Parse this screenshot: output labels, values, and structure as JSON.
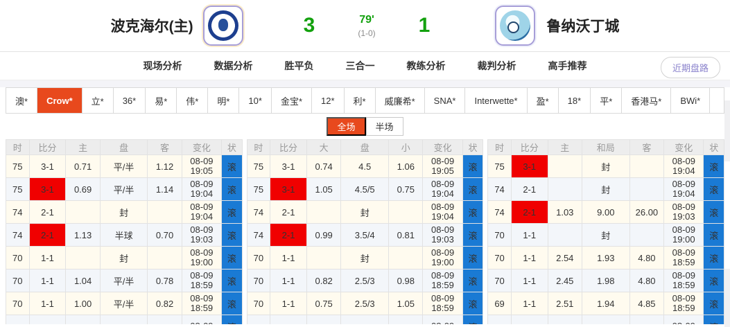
{
  "header": {
    "home_team": "波克海尔(主)",
    "home_score": "3",
    "minute": "79'",
    "half_score": "(1-0)",
    "away_score": "1",
    "away_team": "鲁纳沃丁城",
    "home_badge_icon": "box-hill-united-crest",
    "away_badge_icon": "nunawading-city-crest"
  },
  "nav": {
    "tabs": [
      "现场分析",
      "数据分析",
      "胜平负",
      "三合一",
      "教练分析",
      "裁判分析",
      "高手推荐"
    ],
    "recent_trend_button": "近期盘路"
  },
  "bookmakers": {
    "selected": "Crow*",
    "items": [
      "澳*",
      "Crow*",
      "立*",
      "36*",
      "易*",
      "伟*",
      "明*",
      "10*",
      "金宝*",
      "12*",
      "利*",
      "威廉希*",
      "SNA*",
      "Interwette*",
      "盈*",
      "18*",
      "平*",
      "香港马*",
      "BWi*"
    ]
  },
  "scope_toggle": {
    "options": [
      "全场",
      "半场"
    ],
    "selected": "全场"
  },
  "odds_tables": [
    {
      "name": "asian-handicap",
      "headers": [
        "时",
        "比分",
        "主",
        "盘",
        "客",
        "变化",
        "状"
      ],
      "rows": [
        [
          {
            "t": "75"
          },
          {
            "t": "3-1"
          },
          {
            "t": "0.71",
            "c": "red"
          },
          {
            "t": "平/半"
          },
          {
            "t": "1.12",
            "c": "green"
          },
          {
            "t": "08-09\n19:05"
          },
          {
            "t": "滚"
          }
        ],
        [
          {
            "t": "75"
          },
          {
            "t": "3-1",
            "c": "redbg"
          },
          {
            "t": "0.69"
          },
          {
            "t": "平/半",
            "c": "red"
          },
          {
            "t": "1.14"
          },
          {
            "t": "08-09\n19:04"
          },
          {
            "t": "滚"
          }
        ],
        [
          {
            "t": "74"
          },
          {
            "t": "2-1"
          },
          {
            "t": ""
          },
          {
            "t": "封",
            "c": "green"
          },
          {
            "t": ""
          },
          {
            "t": "08-09\n19:04"
          },
          {
            "t": "滚"
          }
        ],
        [
          {
            "t": "74"
          },
          {
            "t": "2-1",
            "c": "redbg"
          },
          {
            "t": "1.13"
          },
          {
            "t": "半球",
            "c": "red"
          },
          {
            "t": "0.70"
          },
          {
            "t": "08-09\n19:03"
          },
          {
            "t": "滚"
          }
        ],
        [
          {
            "t": "70"
          },
          {
            "t": "1-1"
          },
          {
            "t": ""
          },
          {
            "t": "封",
            "c": "green"
          },
          {
            "t": ""
          },
          {
            "t": "08-09\n19:00"
          },
          {
            "t": "滚"
          }
        ],
        [
          {
            "t": "70"
          },
          {
            "t": "1-1"
          },
          {
            "t": "1.04",
            "c": "red"
          },
          {
            "t": "平/半"
          },
          {
            "t": "0.78",
            "c": "green"
          },
          {
            "t": "08-09\n18:59"
          },
          {
            "t": "滚"
          }
        ],
        [
          {
            "t": "70"
          },
          {
            "t": "1-1"
          },
          {
            "t": "1.00",
            "c": "green"
          },
          {
            "t": "平/半"
          },
          {
            "t": "0.82",
            "c": "red"
          },
          {
            "t": "08-09\n18:59"
          },
          {
            "t": "滚"
          }
        ],
        [
          {
            "t": ""
          },
          {
            "t": ""
          },
          {
            "t": ""
          },
          {
            "t": ""
          },
          {
            "t": ""
          },
          {
            "t": "08-09"
          },
          {
            "t": "滚"
          }
        ]
      ]
    },
    {
      "name": "over-under",
      "headers": [
        "时",
        "比分",
        "大",
        "盘",
        "小",
        "变化",
        "状"
      ],
      "rows": [
        [
          {
            "t": "75"
          },
          {
            "t": "3-1"
          },
          {
            "t": "0.74"
          },
          {
            "t": "4.5",
            "c": "green"
          },
          {
            "t": "1.06"
          },
          {
            "t": "08-09\n19:05"
          },
          {
            "t": "滚"
          }
        ],
        [
          {
            "t": "75"
          },
          {
            "t": "3-1",
            "c": "redbg"
          },
          {
            "t": "1.05"
          },
          {
            "t": "4.5/5",
            "c": "red"
          },
          {
            "t": "0.75"
          },
          {
            "t": "08-09\n19:04"
          },
          {
            "t": "滚"
          }
        ],
        [
          {
            "t": "74"
          },
          {
            "t": "2-1"
          },
          {
            "t": ""
          },
          {
            "t": "封",
            "c": "green"
          },
          {
            "t": ""
          },
          {
            "t": "08-09\n19:04"
          },
          {
            "t": "滚"
          }
        ],
        [
          {
            "t": "74"
          },
          {
            "t": "2-1",
            "c": "redbg"
          },
          {
            "t": "0.99"
          },
          {
            "t": "3.5/4",
            "c": "red"
          },
          {
            "t": "0.81"
          },
          {
            "t": "08-09\n19:03"
          },
          {
            "t": "滚"
          }
        ],
        [
          {
            "t": "70"
          },
          {
            "t": "1-1"
          },
          {
            "t": ""
          },
          {
            "t": "封",
            "c": "green"
          },
          {
            "t": ""
          },
          {
            "t": "08-09\n19:00"
          },
          {
            "t": "滚"
          }
        ],
        [
          {
            "t": "70"
          },
          {
            "t": "1-1"
          },
          {
            "t": "0.82",
            "c": "red"
          },
          {
            "t": "2.5/3"
          },
          {
            "t": "0.98",
            "c": "green"
          },
          {
            "t": "08-09\n18:59"
          },
          {
            "t": "滚"
          }
        ],
        [
          {
            "t": "70"
          },
          {
            "t": "1-1"
          },
          {
            "t": "0.75",
            "c": "green"
          },
          {
            "t": "2.5/3"
          },
          {
            "t": "1.05",
            "c": "red"
          },
          {
            "t": "08-09\n18:59"
          },
          {
            "t": "滚"
          }
        ],
        [
          {
            "t": ""
          },
          {
            "t": ""
          },
          {
            "t": ""
          },
          {
            "t": ""
          },
          {
            "t": ""
          },
          {
            "t": "08-09"
          },
          {
            "t": "滚"
          }
        ]
      ]
    },
    {
      "name": "win-draw-lose",
      "headers": [
        "时",
        "比分",
        "主",
        "和局",
        "客",
        "变化",
        "状"
      ],
      "rows": [
        [
          {
            "t": "75"
          },
          {
            "t": "3-1",
            "c": "redbg"
          },
          {
            "t": ""
          },
          {
            "t": "封"
          },
          {
            "t": ""
          },
          {
            "t": "08-09\n19:04"
          },
          {
            "t": "滚"
          }
        ],
        [
          {
            "t": "74"
          },
          {
            "t": "2-1"
          },
          {
            "t": ""
          },
          {
            "t": "封",
            "c": "green"
          },
          {
            "t": ""
          },
          {
            "t": "08-09\n19:04"
          },
          {
            "t": "滚"
          }
        ],
        [
          {
            "t": "74"
          },
          {
            "t": "2-1",
            "c": "redbg"
          },
          {
            "t": "1.03",
            "c": "red"
          },
          {
            "t": "9.00",
            "c": "red"
          },
          {
            "t": "26.00",
            "c": "red"
          },
          {
            "t": "08-09\n19:03"
          },
          {
            "t": "滚"
          }
        ],
        [
          {
            "t": "70"
          },
          {
            "t": "1-1"
          },
          {
            "t": ""
          },
          {
            "t": "封",
            "c": "green"
          },
          {
            "t": ""
          },
          {
            "t": "08-09\n19:00"
          },
          {
            "t": "滚"
          }
        ],
        [
          {
            "t": "70"
          },
          {
            "t": "1-1"
          },
          {
            "t": "2.54",
            "c": "red"
          },
          {
            "t": "1.93",
            "c": "green"
          },
          {
            "t": "4.80"
          },
          {
            "t": "08-09\n18:59"
          },
          {
            "t": "滚"
          }
        ],
        [
          {
            "t": "70"
          },
          {
            "t": "1-1"
          },
          {
            "t": "2.45",
            "c": "green"
          },
          {
            "t": "1.98",
            "c": "red"
          },
          {
            "t": "4.80",
            "c": "green"
          },
          {
            "t": "08-09\n18:59"
          },
          {
            "t": "滚"
          }
        ],
        [
          {
            "t": "69"
          },
          {
            "t": "1-1"
          },
          {
            "t": "2.51",
            "c": "red"
          },
          {
            "t": "1.94",
            "c": "green"
          },
          {
            "t": "4.85"
          },
          {
            "t": "08-09\n18:59"
          },
          {
            "t": "滚"
          }
        ],
        [
          {
            "t": ""
          },
          {
            "t": ""
          },
          {
            "t": ""
          },
          {
            "t": ""
          },
          {
            "t": ""
          },
          {
            "t": "08-09"
          },
          {
            "t": "滚"
          }
        ]
      ]
    }
  ],
  "colors": {
    "score_green": "#13a10e",
    "table_green": "#008000",
    "table_red": "#e50000",
    "score_highlight_bg": "#f00000",
    "roll_button_blue": "#1a7ad4",
    "selected_tab_orange": "#e8491d",
    "recent_pill_purple": "#8a82cc",
    "row_cream": "#fffbef",
    "row_blue": "#f3f6fa"
  }
}
